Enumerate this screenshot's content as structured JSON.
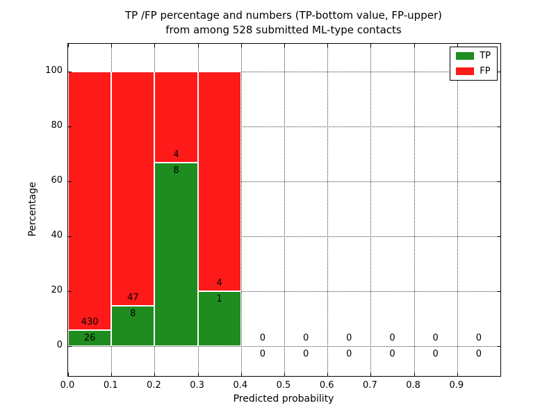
{
  "chart_data": {
    "type": "bar",
    "stacked": true,
    "title": "TP /FP percentage and numbers (TP-bottom value, FP-upper)\nfrom among 528 submitted ML-type contacts",
    "title_line1": "TP /FP percentage and numbers (TP-bottom value, FP-upper)",
    "title_line2": "from among 528 submitted ML-type contacts",
    "xlabel": "Predicted probability",
    "ylabel": "Percentage",
    "xlim": [
      0.0,
      1.0
    ],
    "ylim": [
      -11,
      110
    ],
    "x_tick_values": [
      0.0,
      0.1,
      0.2,
      0.3,
      0.4,
      0.5,
      0.6,
      0.7,
      0.8,
      0.9
    ],
    "x_tick_labels": [
      "0.0",
      "0.1",
      "0.2",
      "0.3",
      "0.4",
      "0.5",
      "0.6",
      "0.7",
      "0.8",
      "0.9"
    ],
    "y_tick_values": [
      0,
      20,
      40,
      60,
      80,
      100
    ],
    "y_tick_labels": [
      "0",
      "20",
      "40",
      "60",
      "80",
      "100"
    ],
    "grid": "dotted",
    "legend": {
      "position": "upper right",
      "entries": [
        {
          "label": "TP",
          "color": "#1e8c1e"
        },
        {
          "label": "FP",
          "color": "#ff1a1a"
        }
      ]
    },
    "colors": {
      "tp": "#1e8c1e",
      "fp": "#ff1a1a"
    },
    "bins": [
      {
        "x_start": 0.0,
        "x_end": 0.1,
        "tp_count": 26,
        "fp_count": 430,
        "tp_pct": 5.7,
        "fp_pct": 94.3
      },
      {
        "x_start": 0.1,
        "x_end": 0.2,
        "tp_count": 8,
        "fp_count": 47,
        "tp_pct": 14.5,
        "fp_pct": 85.5
      },
      {
        "x_start": 0.2,
        "x_end": 0.3,
        "tp_count": 8,
        "fp_count": 4,
        "tp_pct": 66.7,
        "fp_pct": 33.3
      },
      {
        "x_start": 0.3,
        "x_end": 0.4,
        "tp_count": 1,
        "fp_count": 4,
        "tp_pct": 20.0,
        "fp_pct": 80.0
      },
      {
        "x_start": 0.4,
        "x_end": 0.5,
        "tp_count": 0,
        "fp_count": 0,
        "tp_pct": 0,
        "fp_pct": 0
      },
      {
        "x_start": 0.5,
        "x_end": 0.6,
        "tp_count": 0,
        "fp_count": 0,
        "tp_pct": 0,
        "fp_pct": 0
      },
      {
        "x_start": 0.6,
        "x_end": 0.7,
        "tp_count": 0,
        "fp_count": 0,
        "tp_pct": 0,
        "fp_pct": 0
      },
      {
        "x_start": 0.7,
        "x_end": 0.8,
        "tp_count": 0,
        "fp_count": 0,
        "tp_pct": 0,
        "fp_pct": 0
      },
      {
        "x_start": 0.8,
        "x_end": 0.9,
        "tp_count": 0,
        "fp_count": 0,
        "tp_pct": 0,
        "fp_pct": 0
      },
      {
        "x_start": 0.9,
        "x_end": 1.0,
        "tp_count": 0,
        "fp_count": 0,
        "tp_pct": 0,
        "fp_pct": 0
      }
    ]
  }
}
